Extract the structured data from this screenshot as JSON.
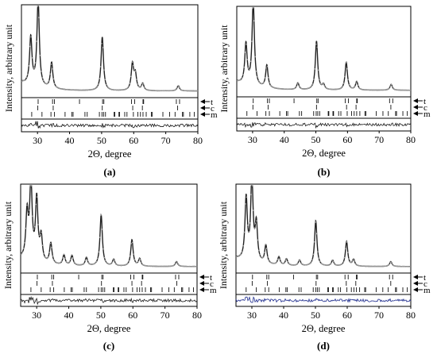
{
  "figure": {
    "y_axis_label": "Intensity, arbitrary unit",
    "x_axis_label": "2Θ, degree",
    "phase_labels": [
      "t",
      "c",
      "m"
    ]
  },
  "chart_data": [
    {
      "type": "line",
      "panel_label": "(a)",
      "xlabel": "2Θ, degree",
      "ylabel": "Intensity, arbitrary unit",
      "xlim": [
        25,
        80
      ],
      "xticks": [
        30,
        40,
        50,
        60,
        70,
        80
      ],
      "difference_color": "#1a1a1a",
      "peaks": [
        {
          "x": 27.9,
          "y": 0.55
        },
        {
          "x": 30.2,
          "y": 1.0
        },
        {
          "x": 34.4,
          "y": 0.3
        },
        {
          "x": 50.2,
          "y": 0.62
        },
        {
          "x": 59.6,
          "y": 0.3
        },
        {
          "x": 60.5,
          "y": 0.18
        },
        {
          "x": 62.8,
          "y": 0.08
        },
        {
          "x": 73.9,
          "y": 0.06
        }
      ],
      "reflections": {
        "t": [
          30.2,
          34.7,
          35.3,
          43.1,
          50.3,
          50.7,
          59.3,
          60.3,
          62.9,
          63.1,
          73.3,
          74.3
        ],
        "c": [
          30.1,
          34.9,
          50.2,
          59.7,
          62.7,
          73.7
        ],
        "m": [
          28.2,
          31.4,
          34.2,
          35.3,
          38.6,
          40.7,
          41.1,
          44.8,
          45.5,
          49.3,
          50.1,
          50.6,
          51.2,
          53.9,
          54.1,
          55.4,
          55.6,
          57.2,
          57.9,
          59.9,
          61.3,
          62.1,
          62.9,
          63.9,
          65.5,
          65.8,
          69.1,
          71.2,
          72.9,
          75.2,
          75.5,
          77.5,
          78.9
        ]
      }
    },
    {
      "type": "line",
      "panel_label": "(b)",
      "xlabel": "2Θ, degree",
      "ylabel": "Intensity, arbitrary unit",
      "xlim": [
        25,
        80
      ],
      "xticks": [
        30,
        40,
        50,
        60,
        70,
        80
      ],
      "difference_color": "#1a1a1a",
      "peaks": [
        {
          "x": 27.9,
          "y": 0.48
        },
        {
          "x": 30.2,
          "y": 1.0
        },
        {
          "x": 34.5,
          "y": 0.27
        },
        {
          "x": 44.3,
          "y": 0.08
        },
        {
          "x": 50.2,
          "y": 0.58
        },
        {
          "x": 52.4,
          "y": 0.06
        },
        {
          "x": 59.6,
          "y": 0.33
        },
        {
          "x": 62.9,
          "y": 0.1
        },
        {
          "x": 73.8,
          "y": 0.07
        }
      ],
      "reflections": {
        "t": [
          30.2,
          34.7,
          35.3,
          43.1,
          50.3,
          50.7,
          59.3,
          60.3,
          62.9,
          63.1,
          73.3,
          74.3
        ],
        "c": [
          30.1,
          34.9,
          50.2,
          59.7,
          62.7,
          73.7
        ],
        "m": [
          28.2,
          31.4,
          34.2,
          35.3,
          38.6,
          40.7,
          41.1,
          44.8,
          45.5,
          49.3,
          50.1,
          50.6,
          51.2,
          53.9,
          54.1,
          55.4,
          55.6,
          57.2,
          57.9,
          59.9,
          61.3,
          62.1,
          62.9,
          63.9,
          65.5,
          65.8,
          69.1,
          71.2,
          72.9,
          75.2,
          75.5,
          77.5,
          78.9
        ]
      }
    },
    {
      "type": "line",
      "panel_label": "(c)",
      "xlabel": "2Θ, degree",
      "ylabel": "Intensity, arbitrary unit",
      "xlim": [
        25,
        80
      ],
      "xticks": [
        30,
        40,
        50,
        60,
        70,
        80
      ],
      "difference_color": "#1a1a1a",
      "peaks": [
        {
          "x": 27.0,
          "y": 0.55
        },
        {
          "x": 28.2,
          "y": 0.95
        },
        {
          "x": 30.0,
          "y": 0.75
        },
        {
          "x": 31.4,
          "y": 0.3
        },
        {
          "x": 34.4,
          "y": 0.25
        },
        {
          "x": 38.5,
          "y": 0.12
        },
        {
          "x": 41.0,
          "y": 0.12
        },
        {
          "x": 45.5,
          "y": 0.1
        },
        {
          "x": 50.1,
          "y": 0.62
        },
        {
          "x": 54.0,
          "y": 0.08
        },
        {
          "x": 59.7,
          "y": 0.32
        },
        {
          "x": 62.1,
          "y": 0.09
        },
        {
          "x": 73.6,
          "y": 0.06
        }
      ],
      "reflections": {
        "t": [
          30.2,
          34.7,
          35.3,
          43.1,
          50.3,
          50.7,
          59.3,
          60.3,
          62.9,
          63.1,
          73.3,
          74.3
        ],
        "c": [
          30.1,
          34.9,
          50.2,
          59.7,
          62.7,
          73.7
        ],
        "m": [
          28.2,
          31.4,
          34.2,
          35.3,
          38.6,
          40.7,
          41.1,
          44.8,
          45.5,
          49.3,
          50.1,
          50.6,
          51.2,
          53.9,
          54.1,
          55.4,
          55.6,
          57.2,
          57.9,
          59.9,
          61.3,
          62.1,
          62.9,
          63.9,
          65.5,
          65.8,
          69.1,
          71.2,
          72.9,
          75.2,
          75.5,
          77.5,
          78.9
        ]
      }
    },
    {
      "type": "line",
      "panel_label": "(d)",
      "xlabel": "2Θ, degree",
      "ylabel": "Intensity, arbitrary unit",
      "xlim": [
        25,
        80
      ],
      "xticks": [
        30,
        40,
        50,
        60,
        70,
        80
      ],
      "difference_color": "#1c2a8c",
      "peaks": [
        {
          "x": 28.2,
          "y": 0.75
        },
        {
          "x": 30.0,
          "y": 1.0
        },
        {
          "x": 31.4,
          "y": 0.45
        },
        {
          "x": 34.4,
          "y": 0.22
        },
        {
          "x": 38.5,
          "y": 0.1
        },
        {
          "x": 40.9,
          "y": 0.08
        },
        {
          "x": 45.0,
          "y": 0.07
        },
        {
          "x": 50.1,
          "y": 0.55
        },
        {
          "x": 55.4,
          "y": 0.07
        },
        {
          "x": 59.8,
          "y": 0.3
        },
        {
          "x": 62.0,
          "y": 0.08
        },
        {
          "x": 73.7,
          "y": 0.06
        }
      ],
      "reflections": {
        "t": [
          30.2,
          34.7,
          35.3,
          43.1,
          50.3,
          50.7,
          59.3,
          60.3,
          62.9,
          63.1,
          73.3,
          74.3
        ],
        "c": [
          30.1,
          34.9,
          50.2,
          59.7,
          62.7,
          73.7
        ],
        "m": [
          28.2,
          31.4,
          34.2,
          35.3,
          38.6,
          40.7,
          41.1,
          44.8,
          45.5,
          49.3,
          50.1,
          50.6,
          51.2,
          53.9,
          54.1,
          55.4,
          55.6,
          57.2,
          57.9,
          59.9,
          61.3,
          62.1,
          62.9,
          63.9,
          65.5,
          65.8,
          69.1,
          71.2,
          72.9,
          75.2,
          75.5,
          77.5,
          78.9
        ]
      }
    }
  ]
}
